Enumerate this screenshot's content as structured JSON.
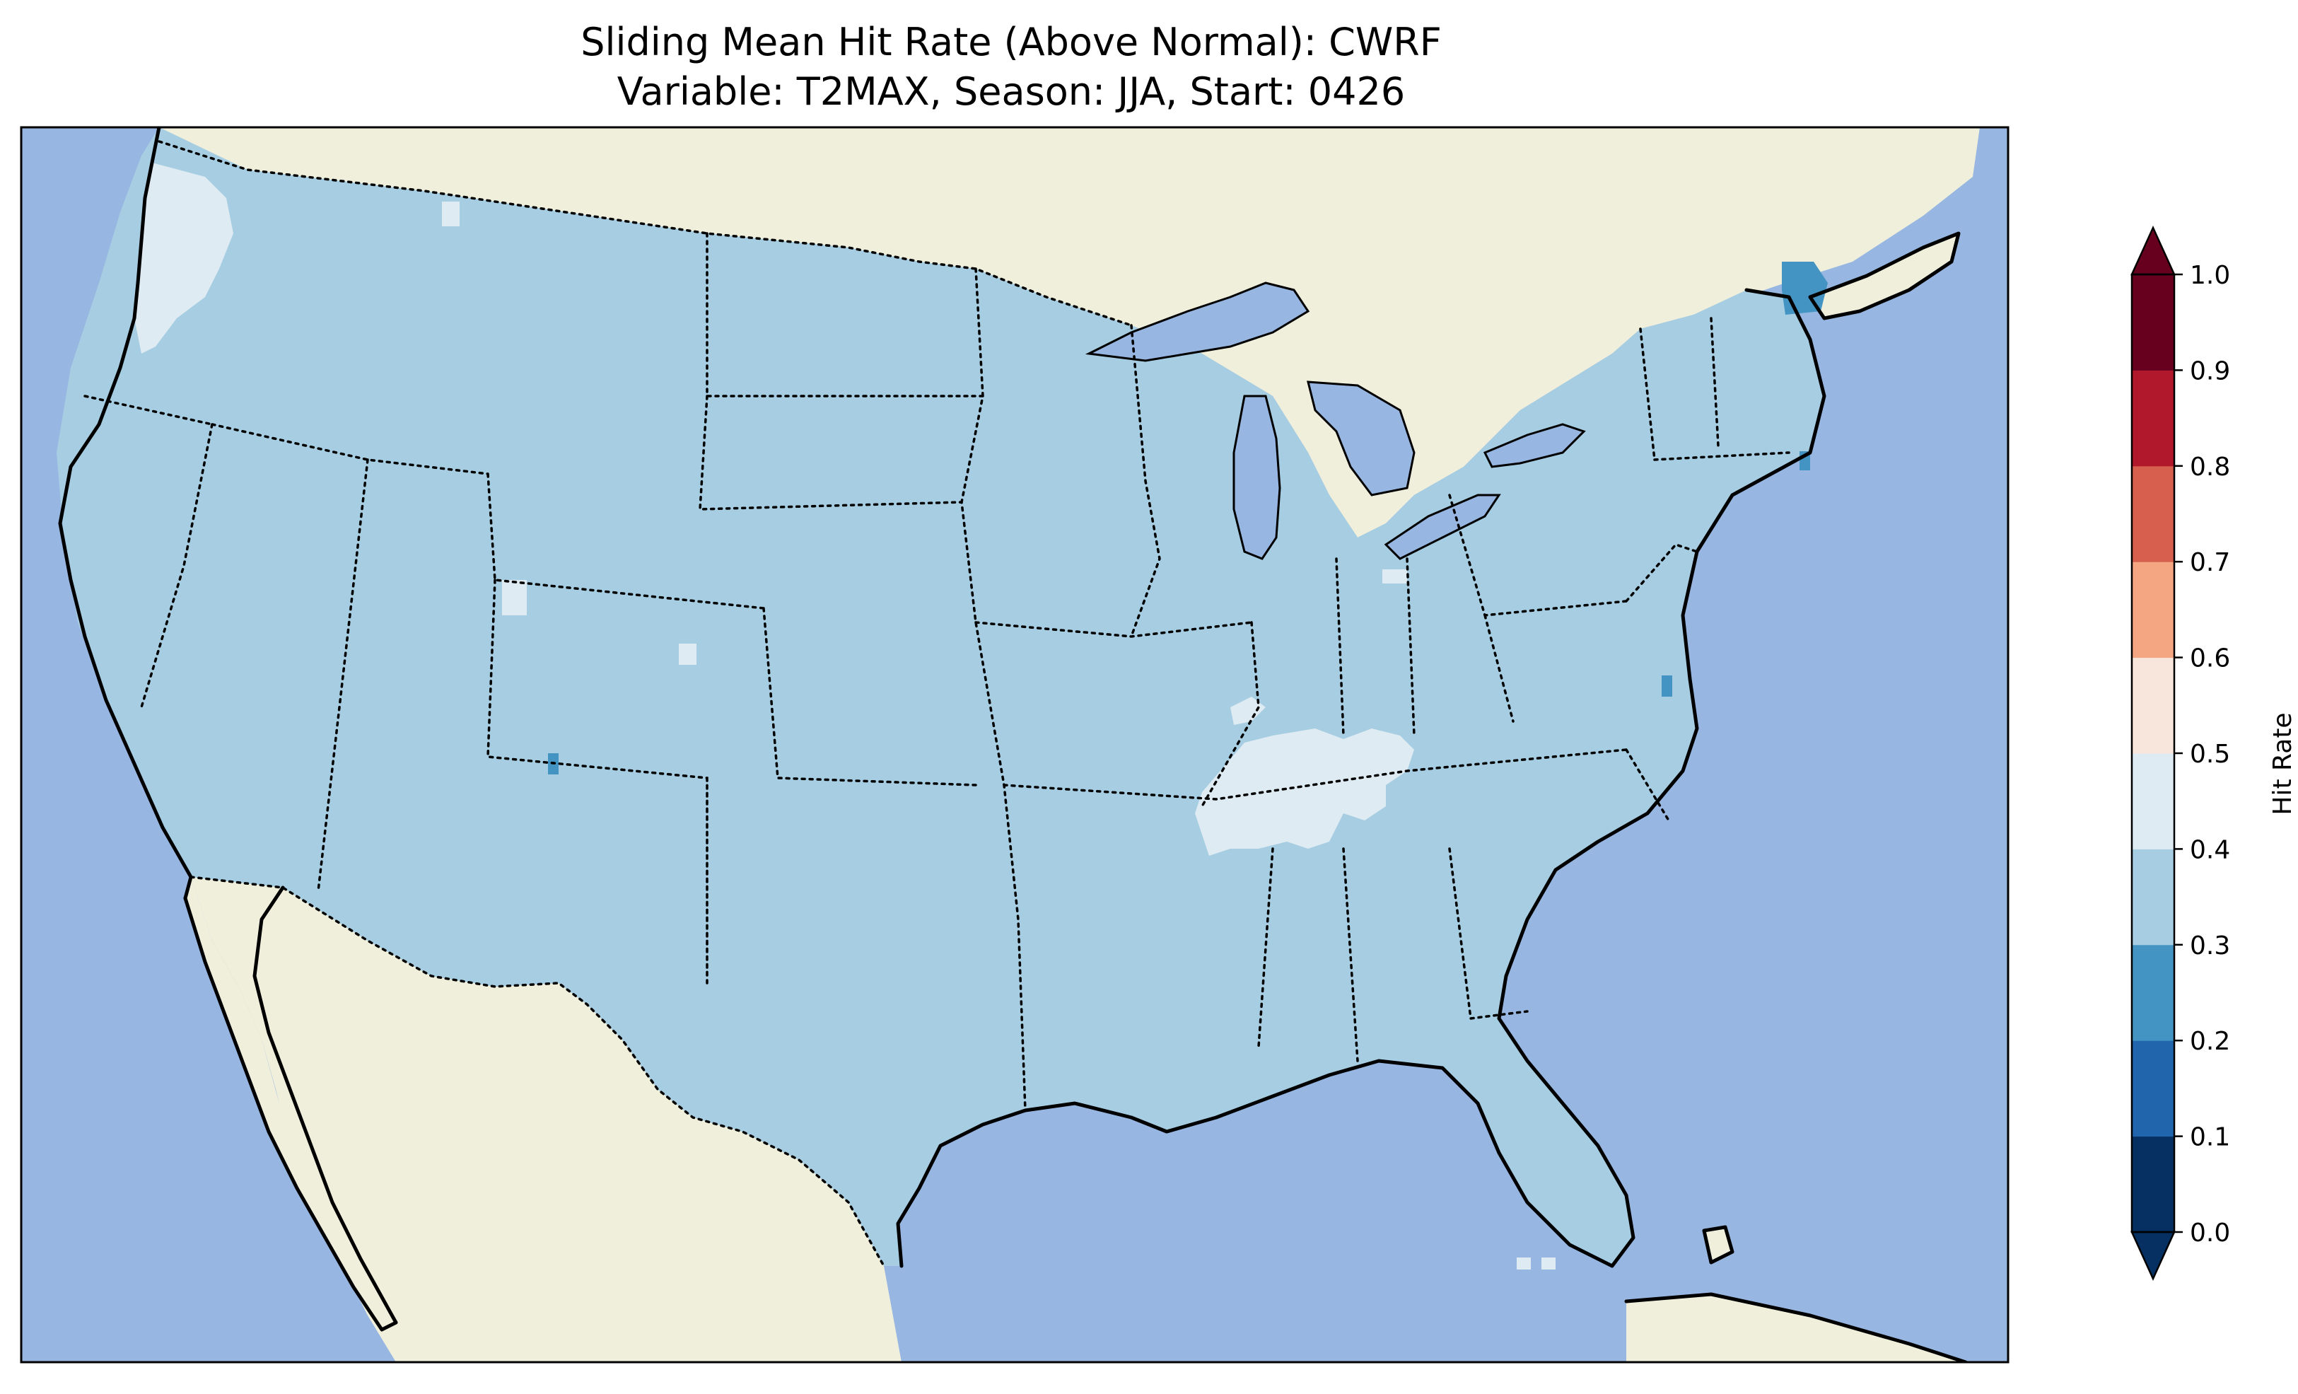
{
  "figure": {
    "title_line1": "Sliding Mean Hit Rate (Above Normal): CWRF",
    "title_line2": "Variable: T2MAX, Season: JJA, Start: 0426"
  },
  "map": {
    "projection": "lambert-conformal",
    "region": "Contiguous United States",
    "colors": {
      "ocean": "#97b6e1",
      "land": "#efefdb",
      "data_fill": "#a6cde2"
    }
  },
  "colorbar": {
    "label": "Hit Rate",
    "extend": "both",
    "colormap": "RdBu_r",
    "ticks": [
      "0.0",
      "0.1",
      "0.2",
      "0.3",
      "0.4",
      "0.5",
      "0.6",
      "0.7",
      "0.8",
      "0.9",
      "1.0"
    ],
    "segments": [
      {
        "range": [
          0.0,
          0.1
        ],
        "color": "#053061"
      },
      {
        "range": [
          0.1,
          0.2
        ],
        "color": "#2166ac"
      },
      {
        "range": [
          0.2,
          0.3
        ],
        "color": "#4393c3"
      },
      {
        "range": [
          0.3,
          0.4
        ],
        "color": "#a6cde2"
      },
      {
        "range": [
          0.4,
          0.5
        ],
        "color": "#deebf2"
      },
      {
        "range": [
          0.5,
          0.6
        ],
        "color": "#f8e6dc"
      },
      {
        "range": [
          0.6,
          0.7
        ],
        "color": "#f4a582"
      },
      {
        "range": [
          0.7,
          0.8
        ],
        "color": "#d6604d"
      },
      {
        "range": [
          0.8,
          0.9
        ],
        "color": "#b2182b"
      },
      {
        "range": [
          0.9,
          1.0
        ],
        "color": "#67001f"
      }
    ],
    "under_color": "#053061",
    "over_color": "#67001f"
  },
  "field_summary": {
    "dominant_bin": [
      0.3,
      0.4
    ],
    "higher_bin_0_4_0_5_areas": [
      "Pacific Northwest coast",
      "Tennessee / Kentucky",
      "Northern Wyoming / Colorado specks"
    ],
    "lower_bin_0_2_0_3_areas": [
      "Eastern Maine",
      "Cape Cod",
      "Chesapeake Bay",
      "Northern New Mexico speck"
    ]
  }
}
